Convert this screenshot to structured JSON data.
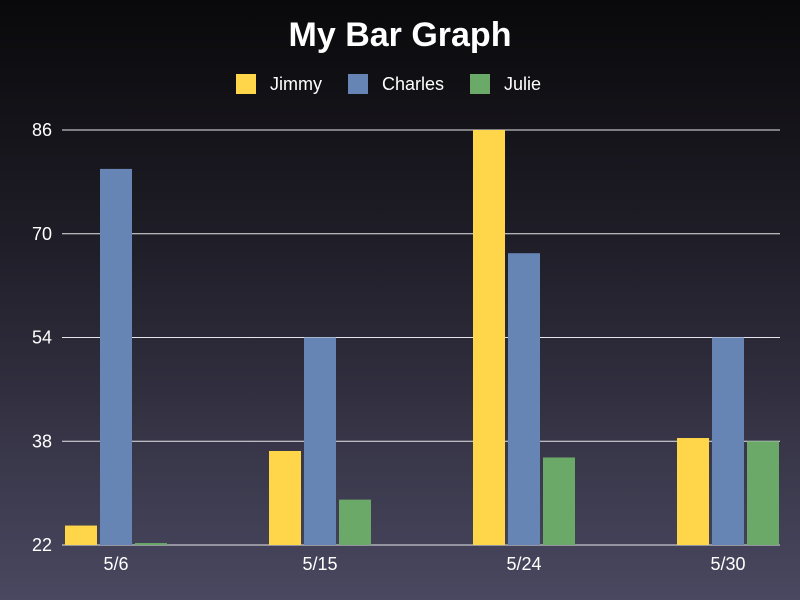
{
  "chart_data": {
    "type": "bar",
    "title": "My Bar Graph",
    "categories": [
      "5/6",
      "5/15",
      "5/24",
      "5/30"
    ],
    "series": [
      {
        "name": "Jimmy",
        "color": "#ffd54a",
        "values": [
          25,
          36.5,
          86,
          38.5
        ]
      },
      {
        "name": "Charles",
        "color": "#6685b5",
        "values": [
          80,
          54,
          67,
          54
        ]
      },
      {
        "name": "Julie",
        "color": "#6aa967",
        "values": [
          22.3,
          29,
          35.5,
          38
        ]
      }
    ],
    "yticks": [
      "22",
      "38",
      "54",
      "70",
      "86"
    ],
    "ylim": [
      22,
      86
    ],
    "grid": true,
    "legend_position": "top-center"
  }
}
